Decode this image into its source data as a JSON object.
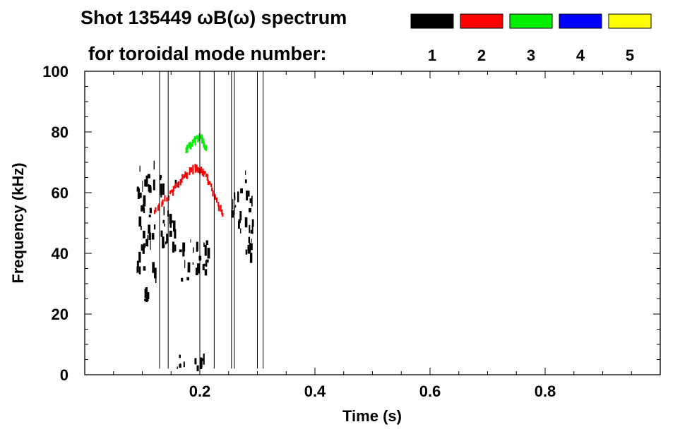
{
  "header": {
    "title_line1": "Shot 135449 ωB(ω) spectrum",
    "title_line2": "for toroidal mode number:"
  },
  "legend": [
    {
      "label": "1",
      "color": "#000000"
    },
    {
      "label": "2",
      "color": "#ff0000"
    },
    {
      "label": "3",
      "color": "#00ee00"
    },
    {
      "label": "4",
      "color": "#0000ff"
    },
    {
      "label": "5",
      "color": "#ffff00"
    }
  ],
  "chart_data": {
    "type": "heatmap",
    "xlabel": "Time (s)",
    "ylabel": "Frequency (kHz)",
    "xlim": [
      0.0,
      1.0
    ],
    "ylim": [
      0,
      100
    ],
    "x_ticks": [
      "0.2",
      "0.4",
      "0.6",
      "0.8"
    ],
    "x_tick_values": [
      0.2,
      0.4,
      0.6,
      0.8
    ],
    "y_ticks": [
      "0",
      "20",
      "40",
      "60",
      "80",
      "100"
    ],
    "y_tick_values": [
      0,
      20,
      40,
      60,
      80,
      100
    ],
    "series": [
      {
        "name": "1",
        "color": "#000000",
        "regions": [
          {
            "t": [
              0.09,
              0.125
            ],
            "f": [
              30,
              72
            ]
          },
          {
            "t": [
              0.1,
              0.115
            ],
            "f": [
              20,
              30
            ]
          },
          {
            "t": [
              0.13,
              0.16
            ],
            "f": [
              40,
              66
            ]
          },
          {
            "t": [
              0.16,
              0.22
            ],
            "f": [
              30,
              45
            ]
          },
          {
            "t": [
              0.16,
              0.22
            ],
            "f": [
              1,
              7
            ]
          },
          {
            "t": [
              0.275,
              0.295
            ],
            "f": [
              36,
              68
            ]
          },
          {
            "t": [
              0.25,
              0.275
            ],
            "f": [
              45,
              62
            ]
          }
        ]
      },
      {
        "name": "2",
        "color": "#ff0000",
        "ridge": {
          "t": [
            0.12,
            0.15,
            0.17,
            0.19,
            0.205,
            0.22,
            0.24
          ],
          "f": [
            54,
            60,
            65,
            68,
            67,
            61,
            52
          ]
        }
      },
      {
        "name": "3",
        "color": "#00ee00",
        "ridge": {
          "t": [
            0.175,
            0.19,
            0.2,
            0.21
          ],
          "f": [
            74,
            77,
            78,
            75
          ]
        }
      },
      {
        "name": "4",
        "color": "#0000ff",
        "regions": []
      },
      {
        "name": "5",
        "color": "#ffff00",
        "regions": []
      }
    ]
  }
}
